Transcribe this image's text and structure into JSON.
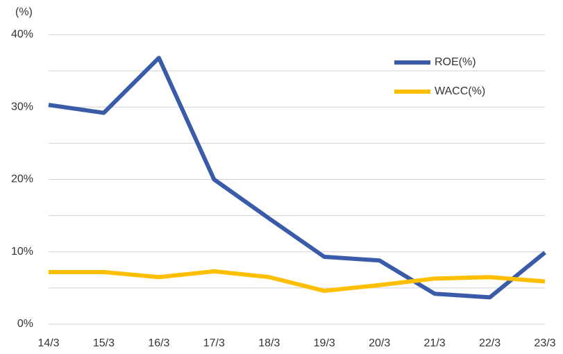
{
  "chart_data": {
    "type": "line",
    "y_unit_label": "(%)",
    "categories": [
      "14/3",
      "15/3",
      "16/3",
      "17/3",
      "18/3",
      "19/3",
      "20/3",
      "21/3",
      "22/3",
      "23/3"
    ],
    "series": [
      {
        "name": "ROE(%)",
        "color": "#3a5ca8",
        "values": [
          30.3,
          29.2,
          36.8,
          20.0,
          14.6,
          9.3,
          8.8,
          4.2,
          3.7,
          9.9
        ]
      },
      {
        "name": "WACC(%)",
        "color": "#fdbf00",
        "values": [
          7.2,
          7.2,
          6.5,
          7.3,
          6.5,
          4.6,
          5.4,
          6.3,
          6.5,
          5.9
        ]
      }
    ],
    "ylim": [
      0,
      40
    ],
    "yticks": [
      {
        "value": 0,
        "label": "0%"
      },
      {
        "value": 10,
        "label": "10%"
      },
      {
        "value": 20,
        "label": "20%"
      },
      {
        "value": 30,
        "label": "30%"
      },
      {
        "value": 40,
        "label": "40%"
      }
    ],
    "minor_gridlines": [
      5,
      15,
      25,
      35
    ],
    "grid": true,
    "legend": "upper-right"
  }
}
